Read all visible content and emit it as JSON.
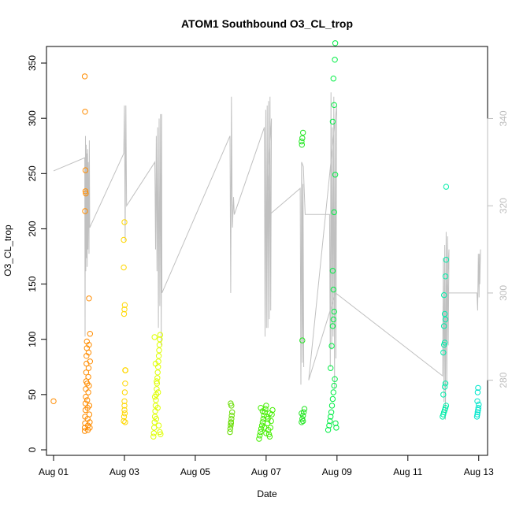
{
  "chart_data": {
    "type": "scatter",
    "title": "ATOM1 Southbound O3_CL_trop",
    "xlabel": "Date",
    "ylabel": "O3_CL_trop",
    "x_unit": "days after Aug 01",
    "xlim": [
      -0.2,
      12.25
    ],
    "ylim": [
      -5,
      365
    ],
    "y2lim": [
      270,
      345
    ],
    "x_ticks": [
      {
        "value": 0,
        "label": "Aug 01"
      },
      {
        "value": 2,
        "label": "Aug 03"
      },
      {
        "value": 4,
        "label": "Aug 05"
      },
      {
        "value": 6,
        "label": "Aug 07"
      },
      {
        "value": 8,
        "label": "Aug 09"
      },
      {
        "value": 10,
        "label": "Aug 11"
      },
      {
        "value": 12,
        "label": "Aug 13"
      }
    ],
    "y_ticks": [
      0,
      50,
      100,
      150,
      200,
      250,
      300,
      350
    ],
    "y2_ticks": [
      280,
      300,
      320,
      340
    ],
    "grid": false,
    "legend": "none",
    "colors": {
      "aug01": "#ff8c00",
      "aug03": "#ffd700",
      "aug04": "#dfff00",
      "aug06": "#66dd00",
      "aug07": "#44ee00",
      "aug08": "#22e622",
      "aug09": "#00ee44",
      "aug12": "#00eeaa",
      "aug13": "#00e6cc",
      "secondary_line": "#c0c0c0"
    },
    "series": [
      {
        "color_key": "aug01",
        "points": [
          [
            0.0,
            44
          ],
          [
            0.88,
            17
          ],
          [
            0.88,
            20
          ],
          [
            0.89,
            24
          ],
          [
            0.89,
            30
          ],
          [
            0.9,
            36
          ],
          [
            0.9,
            42
          ],
          [
            0.91,
            48
          ],
          [
            0.91,
            55
          ],
          [
            0.92,
            62
          ],
          [
            0.92,
            70
          ],
          [
            0.93,
            78
          ],
          [
            0.93,
            85
          ],
          [
            0.94,
            92
          ],
          [
            0.94,
            98
          ],
          [
            0.95,
            60
          ],
          [
            0.95,
            45
          ],
          [
            0.96,
            38
          ],
          [
            0.96,
            28
          ],
          [
            0.97,
            22
          ],
          [
            0.97,
            18
          ],
          [
            0.98,
            52
          ],
          [
            0.98,
            66
          ],
          [
            0.99,
            74
          ],
          [
            0.99,
            88
          ],
          [
            1.0,
            95
          ],
          [
            1.0,
            58
          ],
          [
            1.01,
            40
          ],
          [
            1.01,
            32
          ],
          [
            1.02,
            25
          ],
          [
            1.02,
            20
          ],
          [
            1.03,
            105
          ],
          [
            1.03,
            80
          ],
          [
            1.0,
            137
          ],
          [
            0.88,
            338
          ],
          [
            0.89,
            306
          ],
          [
            0.9,
            253
          ],
          [
            0.9,
            234
          ],
          [
            0.91,
            232
          ],
          [
            0.89,
            216
          ]
        ]
      },
      {
        "color_key": "aug03",
        "points": [
          [
            1.98,
            26
          ],
          [
            1.99,
            30
          ],
          [
            2.0,
            36
          ],
          [
            2.0,
            44
          ],
          [
            2.01,
            52
          ],
          [
            2.02,
            60
          ],
          [
            2.02,
            72
          ],
          [
            2.03,
            72
          ],
          [
            2.0,
            40
          ],
          [
            2.01,
            33
          ],
          [
            2.02,
            25
          ],
          [
            1.99,
            123
          ],
          [
            2.0,
            127
          ],
          [
            2.01,
            131
          ],
          [
            1.98,
            165
          ],
          [
            1.98,
            190
          ],
          [
            2.0,
            206
          ]
        ]
      },
      {
        "color_key": "aug04",
        "points": [
          [
            2.82,
            12
          ],
          [
            2.83,
            15
          ],
          [
            2.84,
            20
          ],
          [
            2.85,
            25
          ],
          [
            2.86,
            30
          ],
          [
            2.87,
            35
          ],
          [
            2.88,
            40
          ],
          [
            2.89,
            45
          ],
          [
            2.9,
            50
          ],
          [
            2.91,
            55
          ],
          [
            2.92,
            60
          ],
          [
            2.93,
            65
          ],
          [
            2.94,
            70
          ],
          [
            2.95,
            75
          ],
          [
            2.96,
            80
          ],
          [
            2.97,
            85
          ],
          [
            2.98,
            90
          ],
          [
            2.99,
            95
          ],
          [
            3.0,
            100
          ],
          [
            3.01,
            104
          ],
          [
            2.85,
            102
          ],
          [
            2.88,
            78
          ],
          [
            2.91,
            62
          ],
          [
            2.94,
            38
          ],
          [
            2.97,
            22
          ],
          [
            3.0,
            16
          ],
          [
            3.02,
            14
          ],
          [
            2.86,
            48
          ],
          [
            2.9,
            28
          ],
          [
            2.95,
            52
          ]
        ]
      },
      {
        "color_key": "aug06",
        "points": [
          [
            4.98,
            16
          ],
          [
            4.99,
            19
          ],
          [
            5.0,
            22
          ],
          [
            5.01,
            25
          ],
          [
            5.02,
            28
          ],
          [
            5.03,
            31
          ],
          [
            5.04,
            34
          ],
          [
            5.0,
            42
          ],
          [
            5.02,
            40
          ],
          [
            5.01,
            24
          ]
        ]
      },
      {
        "color_key": "aug07",
        "points": [
          [
            5.8,
            10
          ],
          [
            5.82,
            13
          ],
          [
            5.84,
            16
          ],
          [
            5.86,
            19
          ],
          [
            5.88,
            22
          ],
          [
            5.9,
            25
          ],
          [
            5.92,
            28
          ],
          [
            5.94,
            31
          ],
          [
            5.96,
            34
          ],
          [
            5.98,
            37
          ],
          [
            6.0,
            40
          ],
          [
            6.02,
            30
          ],
          [
            6.04,
            24
          ],
          [
            6.06,
            18
          ],
          [
            6.08,
            14
          ],
          [
            6.1,
            12
          ],
          [
            6.12,
            20
          ],
          [
            6.14,
            26
          ],
          [
            6.16,
            32
          ],
          [
            6.18,
            36
          ],
          [
            5.85,
            38
          ],
          [
            5.9,
            35
          ],
          [
            5.95,
            20
          ],
          [
            6.0,
            15
          ],
          [
            6.05,
            28
          ],
          [
            6.1,
            33
          ]
        ]
      },
      {
        "color_key": "aug08",
        "points": [
          [
            7.0,
            25
          ],
          [
            7.02,
            28
          ],
          [
            7.04,
            31
          ],
          [
            7.06,
            34
          ],
          [
            7.08,
            37
          ],
          [
            7.0,
            33
          ],
          [
            7.04,
            26
          ],
          [
            7.02,
            99
          ],
          [
            7.0,
            279
          ],
          [
            7.02,
            282
          ],
          [
            7.04,
            287
          ],
          [
            7.01,
            276
          ]
        ]
      },
      {
        "color_key": "aug09",
        "points": [
          [
            7.75,
            18
          ],
          [
            7.78,
            22
          ],
          [
            7.8,
            26
          ],
          [
            7.82,
            30
          ],
          [
            7.84,
            34
          ],
          [
            7.86,
            40
          ],
          [
            7.88,
            46
          ],
          [
            7.9,
            52
          ],
          [
            7.92,
            58
          ],
          [
            7.94,
            64
          ],
          [
            7.96,
            24
          ],
          [
            7.98,
            20
          ],
          [
            7.82,
            74
          ],
          [
            7.85,
            94
          ],
          [
            7.88,
            112
          ],
          [
            7.9,
            118
          ],
          [
            7.92,
            125
          ],
          [
            7.88,
            162
          ],
          [
            7.9,
            145
          ],
          [
            7.92,
            215
          ],
          [
            7.95,
            249
          ],
          [
            7.88,
            297
          ],
          [
            7.92,
            312
          ],
          [
            7.9,
            336
          ],
          [
            7.94,
            353
          ],
          [
            7.95,
            368
          ]
        ]
      },
      {
        "color_key": "aug12",
        "points": [
          [
            10.98,
            30
          ],
          [
            11.0,
            32
          ],
          [
            11.02,
            34
          ],
          [
            11.04,
            36
          ],
          [
            11.06,
            38
          ],
          [
            11.08,
            40
          ],
          [
            11.0,
            50
          ],
          [
            11.04,
            57
          ],
          [
            11.06,
            60
          ],
          [
            11.0,
            88
          ],
          [
            11.02,
            95
          ],
          [
            11.04,
            97
          ],
          [
            11.02,
            112
          ],
          [
            11.06,
            118
          ],
          [
            11.04,
            123
          ],
          [
            11.02,
            140
          ],
          [
            11.06,
            157
          ],
          [
            11.08,
            172
          ],
          [
            11.08,
            238
          ]
        ]
      },
      {
        "color_key": "aug13",
        "points": [
          [
            11.95,
            30
          ],
          [
            11.96,
            32
          ],
          [
            11.97,
            34
          ],
          [
            11.98,
            36
          ],
          [
            11.99,
            38
          ],
          [
            12.0,
            41
          ],
          [
            11.97,
            52
          ],
          [
            11.98,
            56
          ],
          [
            11.96,
            44
          ]
        ]
      }
    ],
    "secondary_series": {
      "axis": "right",
      "color_key": "secondary_line",
      "points": [
        [
          0.0,
          328
        ],
        [
          0.88,
          331
        ],
        [
          0.89,
          290
        ],
        [
          0.9,
          336
        ],
        [
          0.91,
          305
        ],
        [
          0.92,
          334
        ],
        [
          0.93,
          308
        ],
        [
          0.94,
          332
        ],
        [
          0.95,
          306
        ],
        [
          0.96,
          333
        ],
        [
          0.97,
          310
        ],
        [
          0.98,
          330
        ],
        [
          1.0,
          309
        ],
        [
          1.01,
          335
        ],
        [
          1.02,
          315
        ],
        [
          1.98,
          332
        ],
        [
          2.0,
          343
        ],
        [
          2.02,
          312
        ],
        [
          2.04,
          343
        ],
        [
          2.06,
          320
        ],
        [
          2.86,
          330
        ],
        [
          2.88,
          310
        ],
        [
          2.9,
          336
        ],
        [
          2.92,
          305
        ],
        [
          2.94,
          338
        ],
        [
          2.96,
          292
        ],
        [
          2.98,
          340
        ],
        [
          3.0,
          297
        ],
        [
          3.02,
          341
        ],
        [
          3.04,
          288
        ],
        [
          3.05,
          341
        ],
        [
          3.06,
          300
        ],
        [
          4.98,
          336
        ],
        [
          5.0,
          300
        ],
        [
          5.02,
          345
        ],
        [
          5.04,
          320
        ],
        [
          5.02,
          335
        ],
        [
          5.05,
          315
        ],
        [
          5.08,
          322
        ],
        [
          5.1,
          318
        ],
        [
          5.95,
          338
        ],
        [
          5.97,
          290
        ],
        [
          5.99,
          342
        ],
        [
          6.01,
          292
        ],
        [
          6.03,
          343
        ],
        [
          6.05,
          292
        ],
        [
          6.07,
          344
        ],
        [
          6.09,
          294
        ],
        [
          6.11,
          345
        ],
        [
          6.13,
          296
        ],
        [
          6.15,
          340
        ],
        [
          6.0,
          318
        ],
        [
          6.1,
          318
        ],
        [
          6.96,
          324
        ],
        [
          6.98,
          279
        ],
        [
          7.0,
          330
        ],
        [
          7.02,
          284
        ],
        [
          7.04,
          325
        ],
        [
          7.06,
          283
        ],
        [
          7.0,
          330
        ],
        [
          7.05,
          329
        ],
        [
          7.1,
          318
        ],
        [
          7.79,
          318
        ],
        [
          7.81,
          283
        ],
        [
          7.83,
          346
        ],
        [
          7.85,
          287
        ],
        [
          7.87,
          338
        ],
        [
          7.89,
          290
        ],
        [
          7.91,
          345
        ],
        [
          7.93,
          278
        ],
        [
          7.95,
          340
        ],
        [
          7.97,
          285
        ],
        [
          7.99,
          343
        ],
        [
          7.2,
          280
        ],
        [
          7.96,
          300
        ],
        [
          10.98,
          281
        ],
        [
          11.0,
          308
        ],
        [
          11.02,
          275
        ],
        [
          11.04,
          311
        ],
        [
          11.06,
          271
        ],
        [
          11.08,
          314
        ],
        [
          11.1,
          279
        ],
        [
          11.12,
          313
        ],
        [
          11.14,
          288
        ],
        [
          11.16,
          310
        ],
        [
          11.1,
          300
        ],
        [
          11.95,
          300
        ],
        [
          11.97,
          296
        ],
        [
          11.99,
          309
        ],
        [
          12.01,
          299
        ],
        [
          12.02,
          309
        ],
        [
          12.03,
          302
        ],
        [
          12.05,
          310
        ]
      ]
    }
  }
}
